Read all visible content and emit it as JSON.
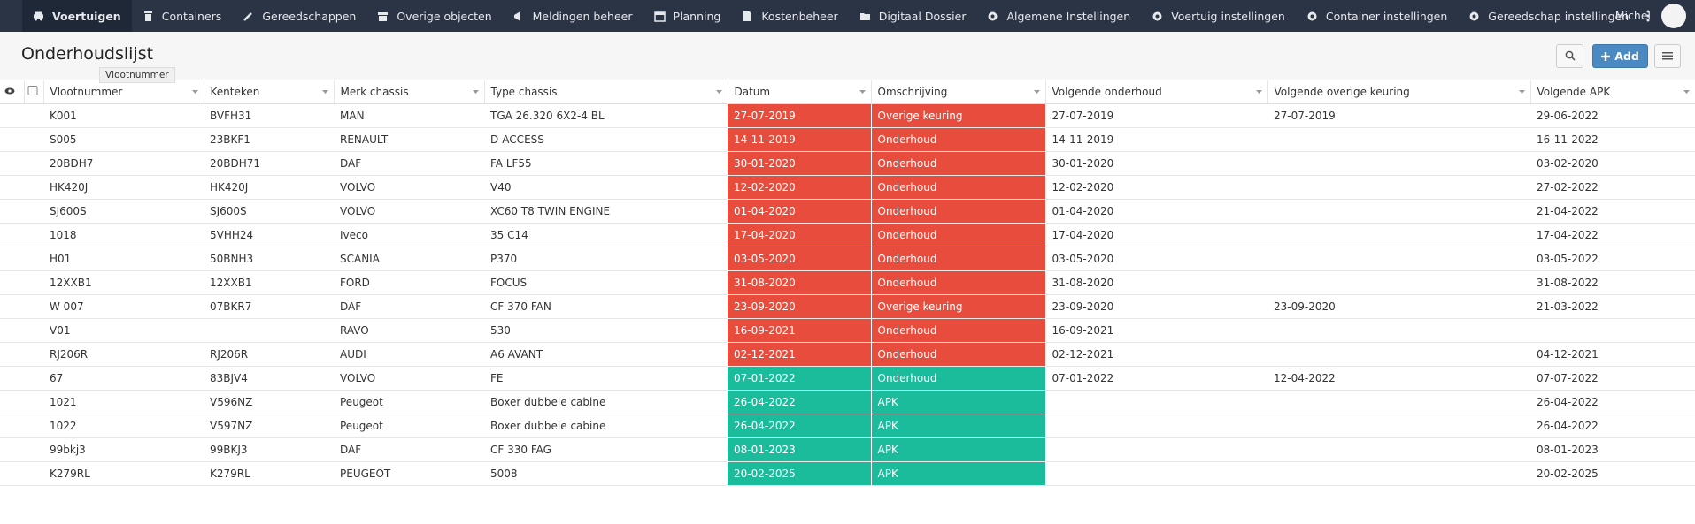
{
  "nav": {
    "items": [
      "Voertuigen",
      "Containers",
      "Gereedschappen",
      "Overige objecten",
      "Meldingen beheer",
      "Planning",
      "Kostenbeheer",
      "Digitaal Dossier",
      "Algemene Instellingen",
      "Voertuig instellingen",
      "Container instellingen",
      "Gereedschap instellingen"
    ],
    "active_color": "#1f2836",
    "user": "Michel"
  },
  "page": {
    "title": "Onderhoudslijst",
    "tooltip": "Vlootnummer",
    "add_button": "Add"
  },
  "table": {
    "columns": [
      "Vlootnummer",
      "Kenteken",
      "Merk chassis",
      "Type chassis",
      "Datum",
      "Omschrijving",
      "Volgende onderhoud",
      "Volgende overige keuring",
      "Volgende APK"
    ],
    "rows": [
      {
        "color": "#e74c3c",
        "cells": [
          "K001",
          "BVFH31",
          "MAN",
          "TGA 26.320 6X2-4 BL",
          "27-07-2019",
          "Overige keuring",
          "27-07-2019",
          "27-07-2019",
          "29-06-2022"
        ]
      },
      {
        "color": "#e74c3c",
        "cells": [
          "S005",
          "23BKF1",
          "RENAULT",
          "D-ACCESS",
          "14-11-2019",
          "Onderhoud",
          "14-11-2019",
          null,
          "16-11-2022"
        ]
      },
      {
        "color": "#e74c3c",
        "cells": [
          "20BDH7",
          "20BDH71",
          "DAF",
          "FA LF55",
          "30-01-2020",
          "Onderhoud",
          "30-01-2020",
          null,
          "03-02-2020"
        ]
      },
      {
        "color": "#e74c3c",
        "cells": [
          "HK420J",
          "HK420J",
          "VOLVO",
          "V40",
          "12-02-2020",
          "Onderhoud",
          "12-02-2020",
          null,
          "27-02-2022"
        ]
      },
      {
        "color": "#e74c3c",
        "cells": [
          "SJ600S",
          "SJ600S",
          "VOLVO",
          "XC60 T8 TWIN ENGINE",
          "01-04-2020",
          "Onderhoud",
          "01-04-2020",
          null,
          "21-04-2022"
        ]
      },
      {
        "color": "#e74c3c",
        "cells": [
          "1018",
          "5VHH24",
          "Iveco",
          "35 C14",
          "17-04-2020",
          "Onderhoud",
          "17-04-2020",
          null,
          "17-04-2022"
        ]
      },
      {
        "color": "#e74c3c",
        "cells": [
          "H01",
          "50BNH3",
          "SCANIA",
          "P370",
          "03-05-2020",
          "Onderhoud",
          "03-05-2020",
          null,
          "03-05-2022"
        ]
      },
      {
        "color": "#e74c3c",
        "cells": [
          "12XXB1",
          "12XXB1",
          "FORD",
          "FOCUS",
          "31-08-2020",
          "Onderhoud",
          "31-08-2020",
          null,
          "31-08-2022"
        ]
      },
      {
        "color": "#e74c3c",
        "cells": [
          "W 007",
          "07BKR7",
          "DAF",
          "CF 370 FAN",
          "23-09-2020",
          "Overige keuring",
          "23-09-2020",
          "23-09-2020",
          "21-03-2022"
        ]
      },
      {
        "color": "#e74c3c",
        "cells": [
          "V01",
          null,
          "RAVO",
          "530",
          "16-09-2021",
          "Onderhoud",
          "16-09-2021",
          null,
          null
        ]
      },
      {
        "color": "#e74c3c",
        "cells": [
          "RJ206R",
          "RJ206R",
          "AUDI",
          "A6 AVANT",
          "02-12-2021",
          "Onderhoud",
          "02-12-2021",
          null,
          "04-12-2021"
        ]
      },
      {
        "color": "#1abc9c",
        "cells": [
          "67",
          "83BJV4",
          "VOLVO",
          "FE",
          "07-01-2022",
          "Onderhoud",
          "07-01-2022",
          "12-04-2022",
          "07-07-2022"
        ]
      },
      {
        "color": "#1abc9c",
        "cells": [
          "1021",
          "V596NZ",
          "Peugeot",
          "Boxer dubbele cabine",
          "26-04-2022",
          "APK",
          null,
          null,
          "26-04-2022"
        ]
      },
      {
        "color": "#1abc9c",
        "cells": [
          "1022",
          "V597NZ",
          "Peugeot",
          "Boxer dubbele cabine",
          "26-04-2022",
          "APK",
          null,
          null,
          "26-04-2022"
        ]
      },
      {
        "color": "#1abc9c",
        "cells": [
          "99bkj3",
          "99BKJ3",
          "DAF",
          "CF 330 FAG",
          "08-01-2023",
          "APK",
          null,
          null,
          "08-01-2023"
        ]
      },
      {
        "color": "#1abc9c",
        "cells": [
          "K279RL",
          "K279RL",
          "PEUGEOT",
          "5008",
          "20-02-2025",
          "APK",
          null,
          null,
          "20-02-2025"
        ]
      }
    ]
  }
}
